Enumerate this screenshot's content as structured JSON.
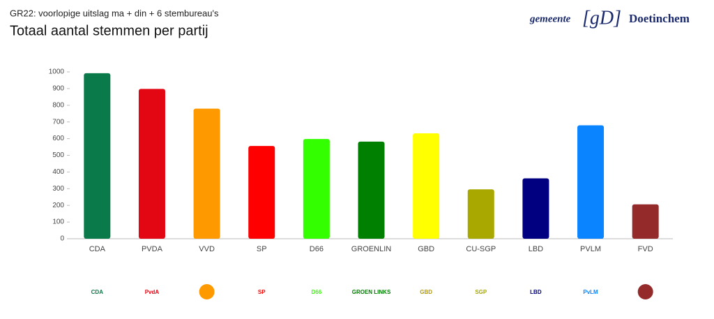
{
  "chart_data": {
    "type": "bar",
    "subtitle": "GR22: voorlopige uitslag ma + din + 6 stembureau's",
    "title": "Totaal aantal stemmen per partij",
    "brand": {
      "prefix": "gemeente",
      "mark": "[gD]",
      "name": "Doetinchem"
    },
    "categories": [
      "CDA",
      "PVDA",
      "VVD",
      "SP",
      "D66",
      "GROENLIN",
      "GBD",
      "CU-SGP",
      "LBD",
      "PVLM",
      "FVD"
    ],
    "values": [
      992,
      898,
      780,
      556,
      598,
      582,
      632,
      296,
      362,
      680,
      206
    ],
    "colors": [
      "#0a7a4a",
      "#e30613",
      "#ff9900",
      "#ff0000",
      "#33ff00",
      "#008000",
      "#ffff00",
      "#a8a800",
      "#000080",
      "#0a84ff",
      "#952a2a"
    ],
    "logos": [
      "CDA",
      "PvdA",
      null,
      "SP",
      "D66",
      "GROEN LINKS",
      "GBD",
      "SGP",
      "LBD",
      "PvLM",
      null
    ],
    "ylim": [
      0,
      1000
    ],
    "yticks": [
      0,
      100,
      200,
      300,
      400,
      500,
      600,
      700,
      800,
      900,
      1000
    ]
  }
}
